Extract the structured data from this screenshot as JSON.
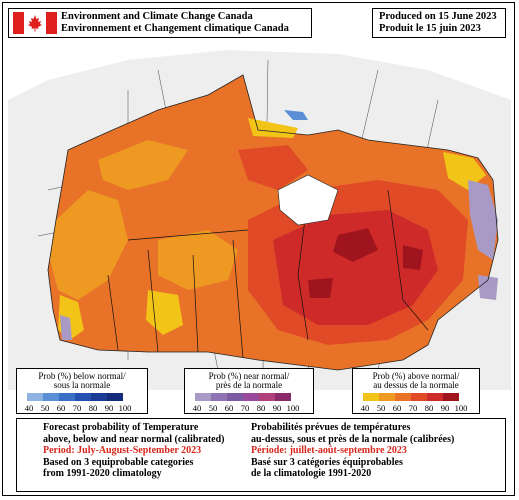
{
  "header": {
    "agency_en": "Environment and Climate Change Canada",
    "agency_fr": "Environnement et Changement climatique Canada",
    "produced_en": "Produced on 15 June 2023",
    "produced_fr": "Produit le 15 juin 2023"
  },
  "legends": {
    "below": {
      "title_en": "Prob (%) below normal/",
      "title_fr": "sous la normale",
      "ticks": [
        "40",
        "50",
        "60",
        "70",
        "80",
        "90",
        "100"
      ],
      "colors": [
        "#8fb3e0",
        "#5a8fd6",
        "#3a6fc6",
        "#2450b0",
        "#1a3a96",
        "#142a7a"
      ]
    },
    "near": {
      "title_en": "Prob (%) near normal/",
      "title_fr": "près de la normale",
      "ticks": [
        "40",
        "50",
        "60",
        "70",
        "80",
        "90",
        "100"
      ],
      "colors": [
        "#a89ac4",
        "#8e74b2",
        "#7a5aa0",
        "#9a4a9a",
        "#b0407a",
        "#8a2a6a"
      ]
    },
    "above": {
      "title_en": "Prob (%) above normal/",
      "title_fr": "au dessus de la normale",
      "ticks": [
        "40",
        "50",
        "60",
        "70",
        "80",
        "90",
        "100"
      ],
      "colors": [
        "#f2c418",
        "#ee9a22",
        "#e87228",
        "#e04a26",
        "#cf2a2a",
        "#a0141e"
      ]
    }
  },
  "info": {
    "en_title1": "Forecast probability of Temperature",
    "en_title2": "above, below and near normal (calibrated)",
    "en_period": "Period: July-August-September 2023",
    "en_basis1": "Based on 3 equiprobable categories",
    "en_basis2": "from 1991-2020 climatology",
    "fr_title1": "Probabilités prévues de températures",
    "fr_title2": "au-dessus, sous et près de la normale (calibrées)",
    "fr_period": "Période: juillet-août-septembre 2023",
    "fr_basis1": "Basé sur 3 catégories équiprobables",
    "fr_basis2": "de la climatologie 1991-2020"
  },
  "map": {
    "colors": {
      "yellow": "#f2c418",
      "light_orange": "#ee9a22",
      "orange": "#e87228",
      "red_orange": "#e04a26",
      "red": "#cf2a2a",
      "dark_red": "#a0141e",
      "near_normal": "#a89ac4",
      "below_normal": "#5a8fd6",
      "land_grey": "#e9e9e9"
    }
  }
}
